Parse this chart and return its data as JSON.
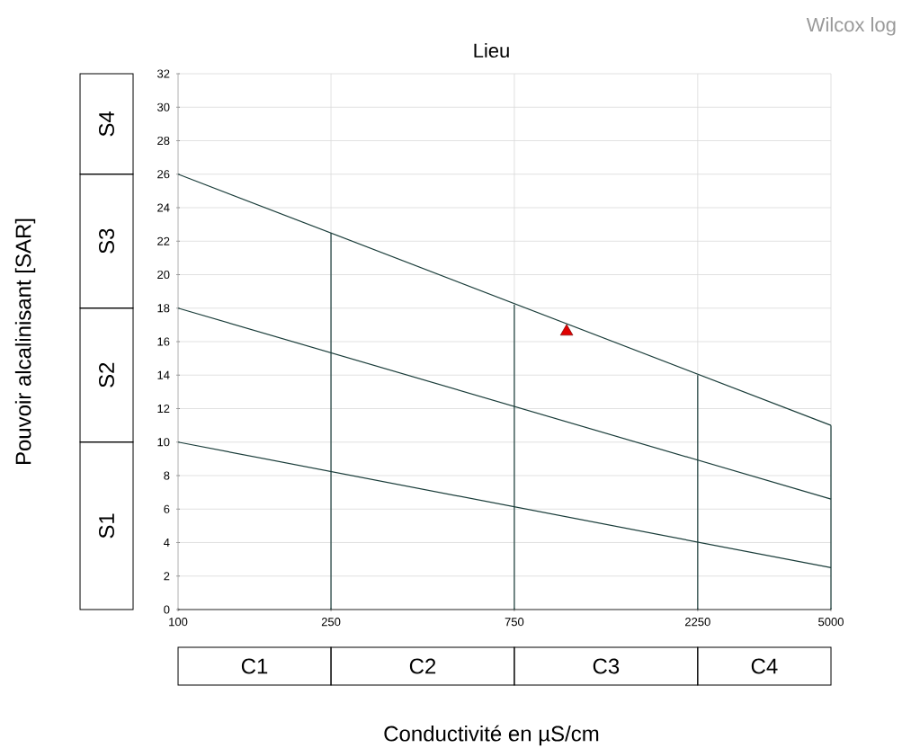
{
  "chart_data": {
    "type": "line",
    "title": "Lieu",
    "xlabel": "Conductivité en µS/cm",
    "log": "x",
    "grid": true,
    "xlim": [
      100,
      5000
    ],
    "ylim": [
      0,
      32
    ],
    "xticks": [
      100,
      250,
      750,
      2250,
      5000
    ],
    "yticks": [
      0,
      2,
      4,
      6,
      8,
      10,
      12,
      14,
      16,
      18,
      20,
      22,
      24,
      26,
      28,
      30,
      32
    ],
    "annotations": [
      "Wilcox log",
      "S1",
      "S2",
      "S3",
      "S4",
      "C1",
      "C2",
      "C3",
      "C4",
      "Pouvoir alcalinisant [SAR]"
    ],
    "series": [
      {
        "color": "#1a3d3a",
        "x": [
          100,
          5000
        ],
        "values": [
          26,
          11
        ]
      },
      {
        "color": "#1a3d3a",
        "x": [
          100,
          5000
        ],
        "values": [
          18,
          6.6
        ]
      },
      {
        "color": "#1a3d3a",
        "x": [
          100,
          5000
        ],
        "values": [
          10,
          2.5
        ]
      },
      {
        "color": "#1a3d3a",
        "x": [
          250,
          250
        ],
        "values": [
          0,
          22.5
        ]
      },
      {
        "color": "#1a3d3a",
        "x": [
          750,
          750
        ],
        "values": [
          0,
          18.2
        ]
      },
      {
        "color": "#1a3d3a",
        "x": [
          2250,
          2250
        ],
        "values": [
          0,
          14
        ]
      },
      {
        "color": "#1a3d3a",
        "x": [
          5000,
          5000
        ],
        "values": [
          0,
          11
        ]
      },
      {
        "type": "scatter",
        "color": "#e00000",
        "marker": "triangle",
        "x": [
          1026
        ],
        "values": [
          16.6
        ]
      }
    ]
  }
}
